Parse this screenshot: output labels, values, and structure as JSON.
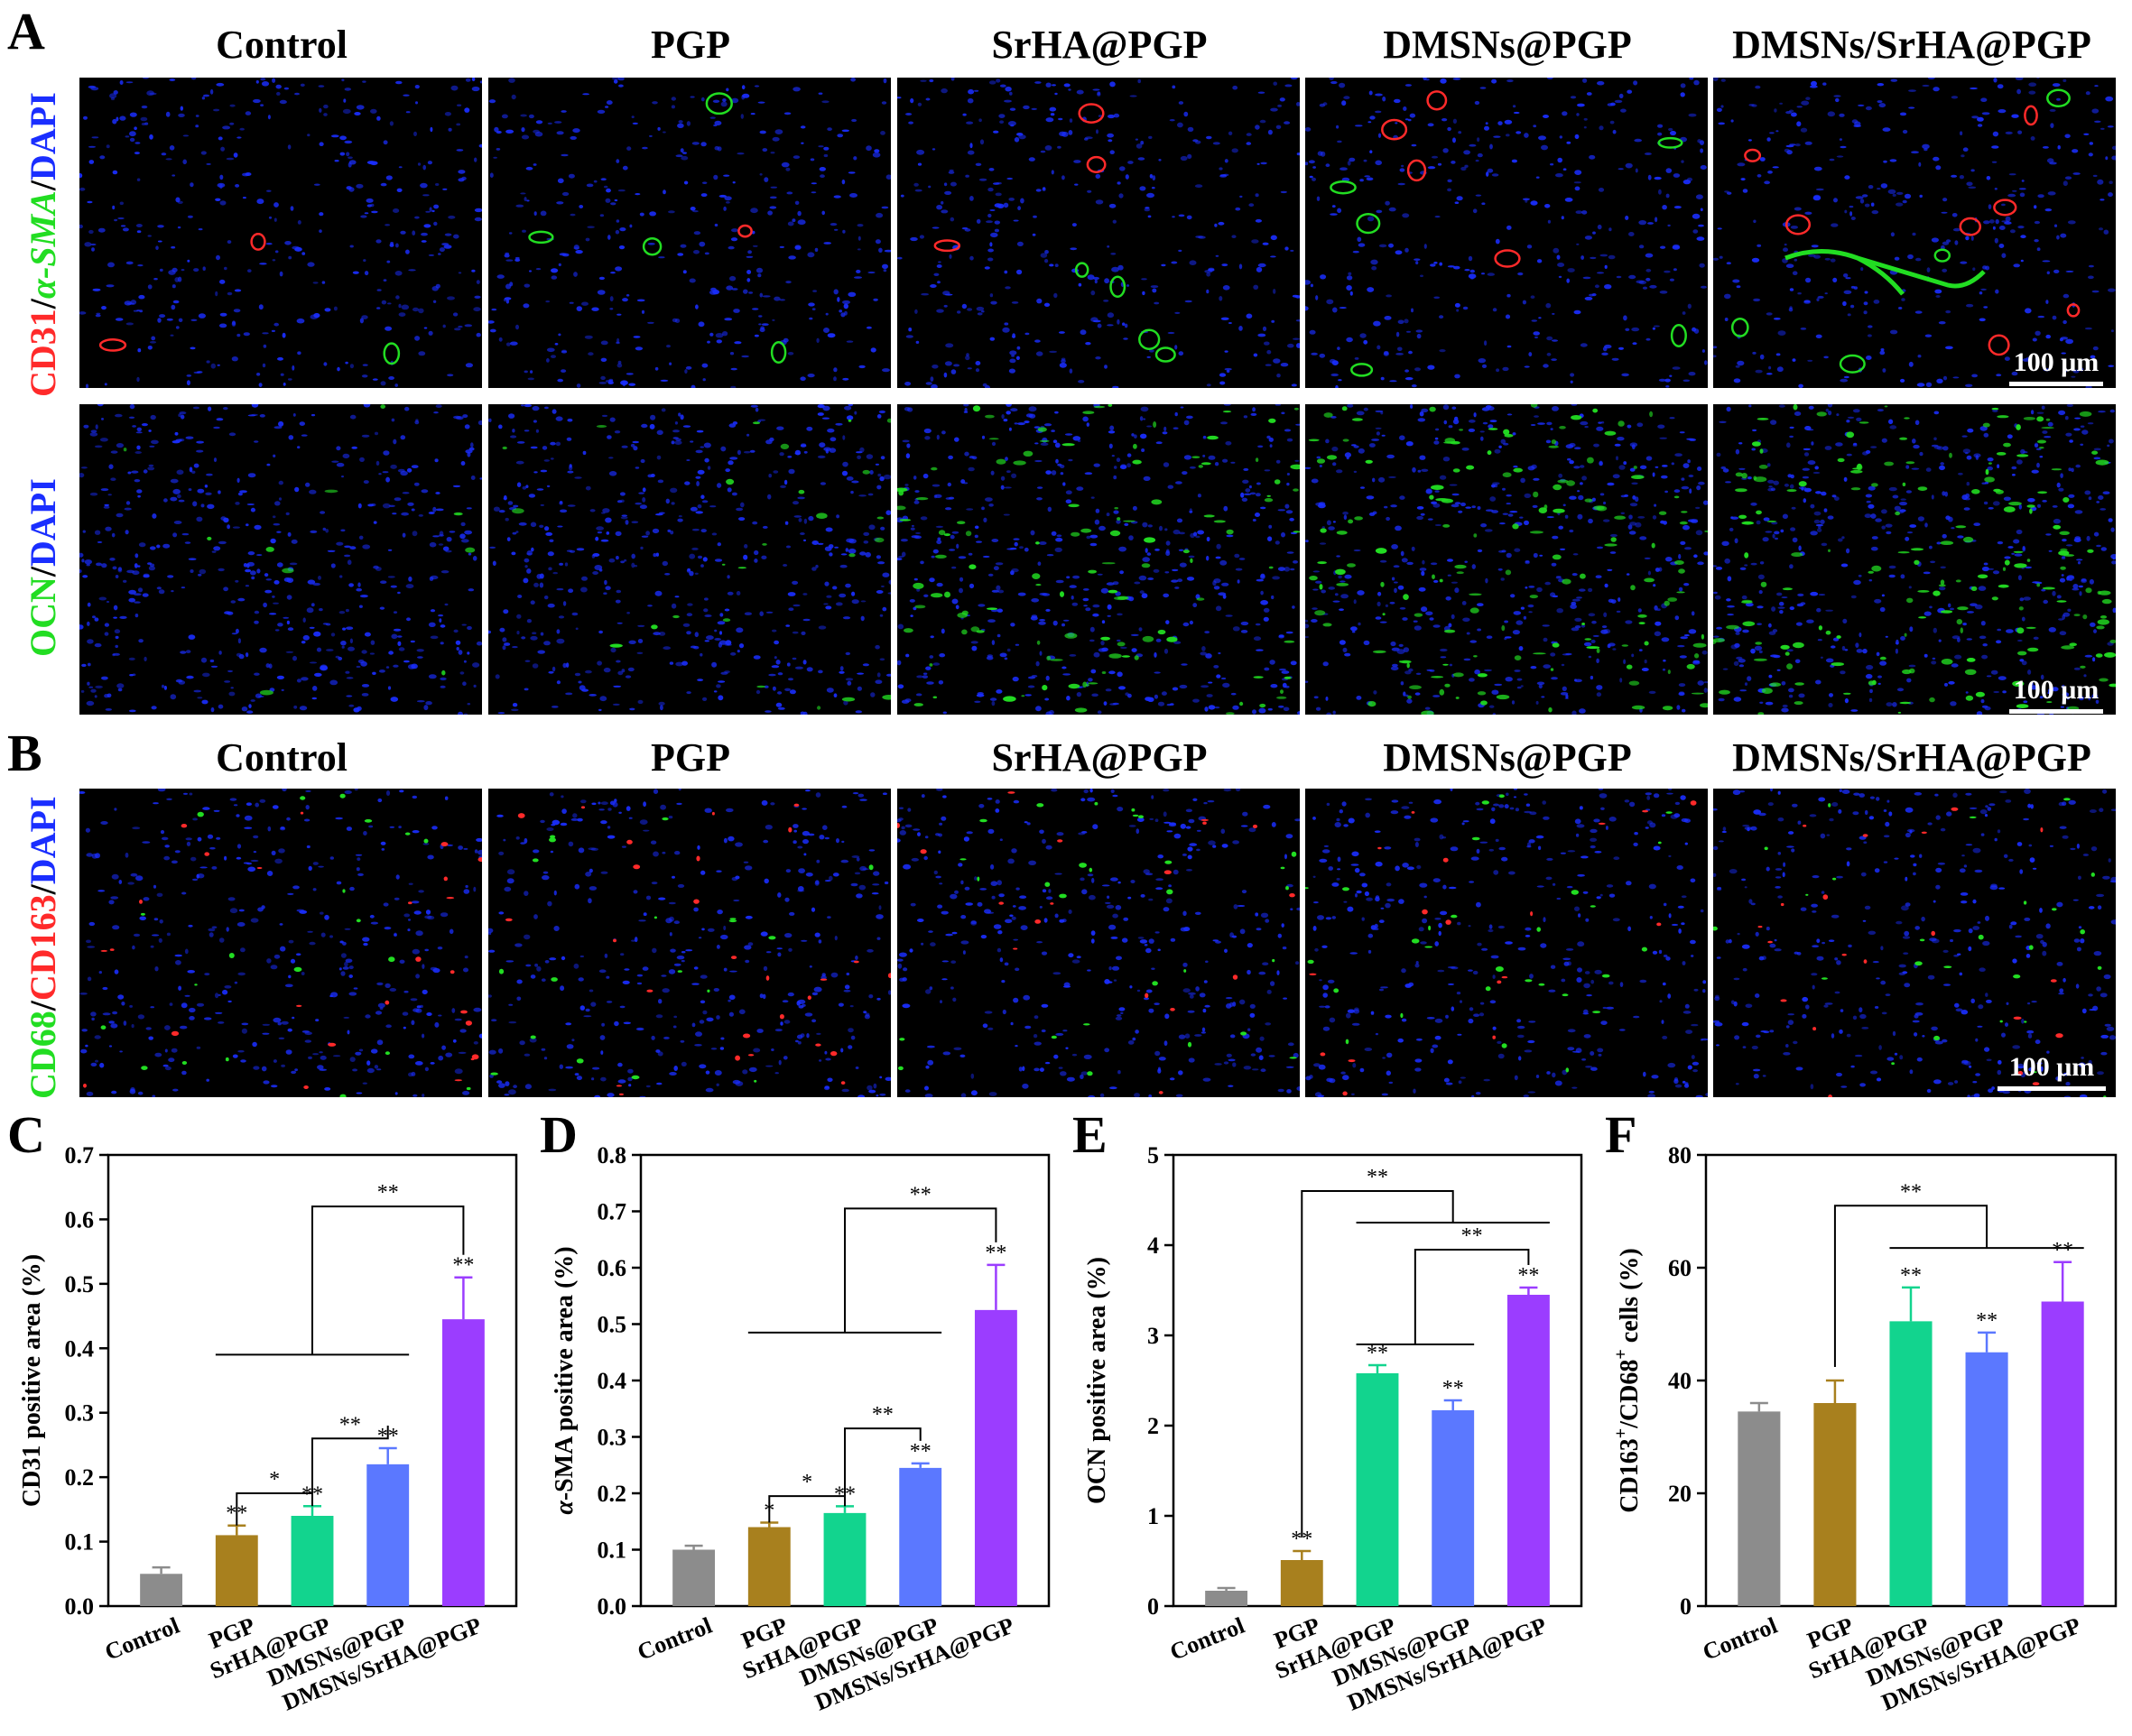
{
  "figure": {
    "panel_a_label": "A",
    "panel_b_label": "B",
    "groups": [
      "Control",
      "PGP",
      "SrHA@PGP",
      "DMSNs@PGP",
      "DMSNs/SrHA@PGP"
    ],
    "scale_bar": "100 μm",
    "row1_label": {
      "part1": "CD31",
      "sep1": "/",
      "part2": "α-SMA",
      "sep2": "/",
      "part3": "DAPI"
    },
    "row2_label": {
      "part1": "OCN",
      "sep1": "/",
      "part2": "DAPI"
    },
    "row3_label": {
      "part1": "CD68",
      "sep1": "/",
      "part2": "CD163",
      "sep2": "/",
      "part3": "DAPI"
    },
    "colors": {
      "red": "#ff2a2a",
      "green": "#22dd22",
      "blue": "#1a2eff"
    }
  },
  "chart_data": [
    {
      "panel": "C",
      "type": "bar",
      "ylabel": "CD31 positive area (%)",
      "categories": [
        "Control",
        "PGP",
        "SrHA@PGP",
        "DMSNs@PGP",
        "DMSNs/SrHA@PGP"
      ],
      "values": [
        0.05,
        0.11,
        0.14,
        0.22,
        0.445
      ],
      "errors": [
        0.01,
        0.015,
        0.015,
        0.025,
        0.065
      ],
      "colors": [
        "#8c8c8c",
        "#a8801e",
        "#12d48e",
        "#5b78ff",
        "#9b3dff"
      ],
      "ylim": [
        0,
        0.7
      ],
      "yticks": [
        0.0,
        0.1,
        0.2,
        0.3,
        0.4,
        0.5,
        0.6,
        0.7
      ],
      "bar_marks": [
        "",
        "**",
        "**",
        "**",
        "**"
      ],
      "brackets": [
        {
          "from": 1,
          "to": 2,
          "y": 0.175,
          "label": "*"
        },
        {
          "from": 2,
          "to": 3,
          "y": 0.26,
          "label": "**"
        },
        {
          "from_group": [
            1,
            3
          ],
          "to": 4,
          "y": 0.62,
          "group_y": 0.39,
          "label": "**"
        }
      ]
    },
    {
      "panel": "D",
      "type": "bar",
      "ylabel": "α-SMA positive area (%)",
      "categories": [
        "Control",
        "PGP",
        "SrHA@PGP",
        "DMSNs@PGP",
        "DMSNs/SrHA@PGP"
      ],
      "values": [
        0.1,
        0.14,
        0.165,
        0.245,
        0.525
      ],
      "errors": [
        0.007,
        0.008,
        0.012,
        0.008,
        0.08
      ],
      "colors": [
        "#8c8c8c",
        "#a8801e",
        "#12d48e",
        "#5b78ff",
        "#9b3dff"
      ],
      "ylim": [
        0,
        0.8
      ],
      "yticks": [
        0.0,
        0.1,
        0.2,
        0.3,
        0.4,
        0.5,
        0.6,
        0.7,
        0.8
      ],
      "bar_marks": [
        "",
        "*",
        "**",
        "**",
        "**"
      ],
      "brackets": [
        {
          "from": 1,
          "to": 2,
          "y": 0.195,
          "label": "*"
        },
        {
          "from": 2,
          "to": 3,
          "y": 0.315,
          "label": "**"
        },
        {
          "from_group": [
            1,
            3
          ],
          "to": 4,
          "y": 0.705,
          "group_y": 0.485,
          "label": "**"
        }
      ]
    },
    {
      "panel": "E",
      "type": "bar",
      "ylabel": "OCN positive area (%)",
      "categories": [
        "Control",
        "PGP",
        "SrHA@PGP",
        "DMSNs@PGP",
        "DMSNs/SrHA@PGP"
      ],
      "values": [
        0.17,
        0.51,
        2.58,
        2.17,
        3.45
      ],
      "errors": [
        0.03,
        0.1,
        0.09,
        0.11,
        0.08
      ],
      "colors": [
        "#8c8c8c",
        "#a8801e",
        "#12d48e",
        "#5b78ff",
        "#9b3dff"
      ],
      "ylim": [
        0,
        5
      ],
      "yticks": [
        0,
        1,
        2,
        3,
        4,
        5
      ],
      "bar_marks": [
        "",
        "**",
        "**",
        "**",
        "**"
      ],
      "brackets": [
        {
          "from_group": [
            2,
            3
          ],
          "to": 4,
          "y": 3.95,
          "group_y": 2.9,
          "label": "**"
        },
        {
          "from": 1,
          "to_group": [
            2,
            4
          ],
          "y": 4.6,
          "group_y": 4.25,
          "label": "**"
        }
      ]
    },
    {
      "panel": "F",
      "type": "bar",
      "ylabel": "CD163+/CD68+ cells (%)",
      "ylabel_parts": {
        "a": "CD163",
        "a_sup": "+",
        "b": "/CD68",
        "b_sup": "+",
        "c": " cells (%)"
      },
      "categories": [
        "Control",
        "PGP",
        "SrHA@PGP",
        "DMSNs@PGP",
        "DMSNs/SrHA@PGP"
      ],
      "values": [
        34.5,
        36,
        50.5,
        45,
        54
      ],
      "errors": [
        1.5,
        4,
        6,
        3.5,
        7
      ],
      "colors": [
        "#8c8c8c",
        "#a8801e",
        "#12d48e",
        "#5b78ff",
        "#9b3dff"
      ],
      "ylim": [
        0,
        80
      ],
      "yticks": [
        0,
        20,
        40,
        60,
        80
      ],
      "bar_marks": [
        "",
        "",
        "**",
        "**",
        "**"
      ],
      "brackets": [
        {
          "from": 1,
          "to_group": [
            2,
            4
          ],
          "y": 71,
          "group_y": 63.5,
          "label": "**"
        }
      ]
    }
  ]
}
